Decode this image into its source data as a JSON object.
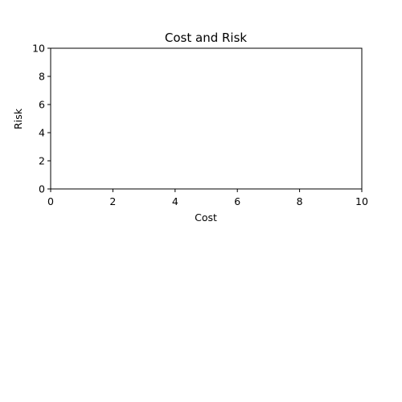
{
  "chart_data": {
    "type": "scatter",
    "title": "Cost and Risk",
    "xlabel": "Cost",
    "ylabel": "Risk",
    "xlim": [
      0,
      10
    ],
    "ylim": [
      0,
      10
    ],
    "xticks": [
      "0",
      "2",
      "4",
      "6",
      "8",
      "10"
    ],
    "yticks": [
      "0",
      "2",
      "4",
      "6",
      "8",
      "10"
    ],
    "grid": false,
    "series": []
  }
}
